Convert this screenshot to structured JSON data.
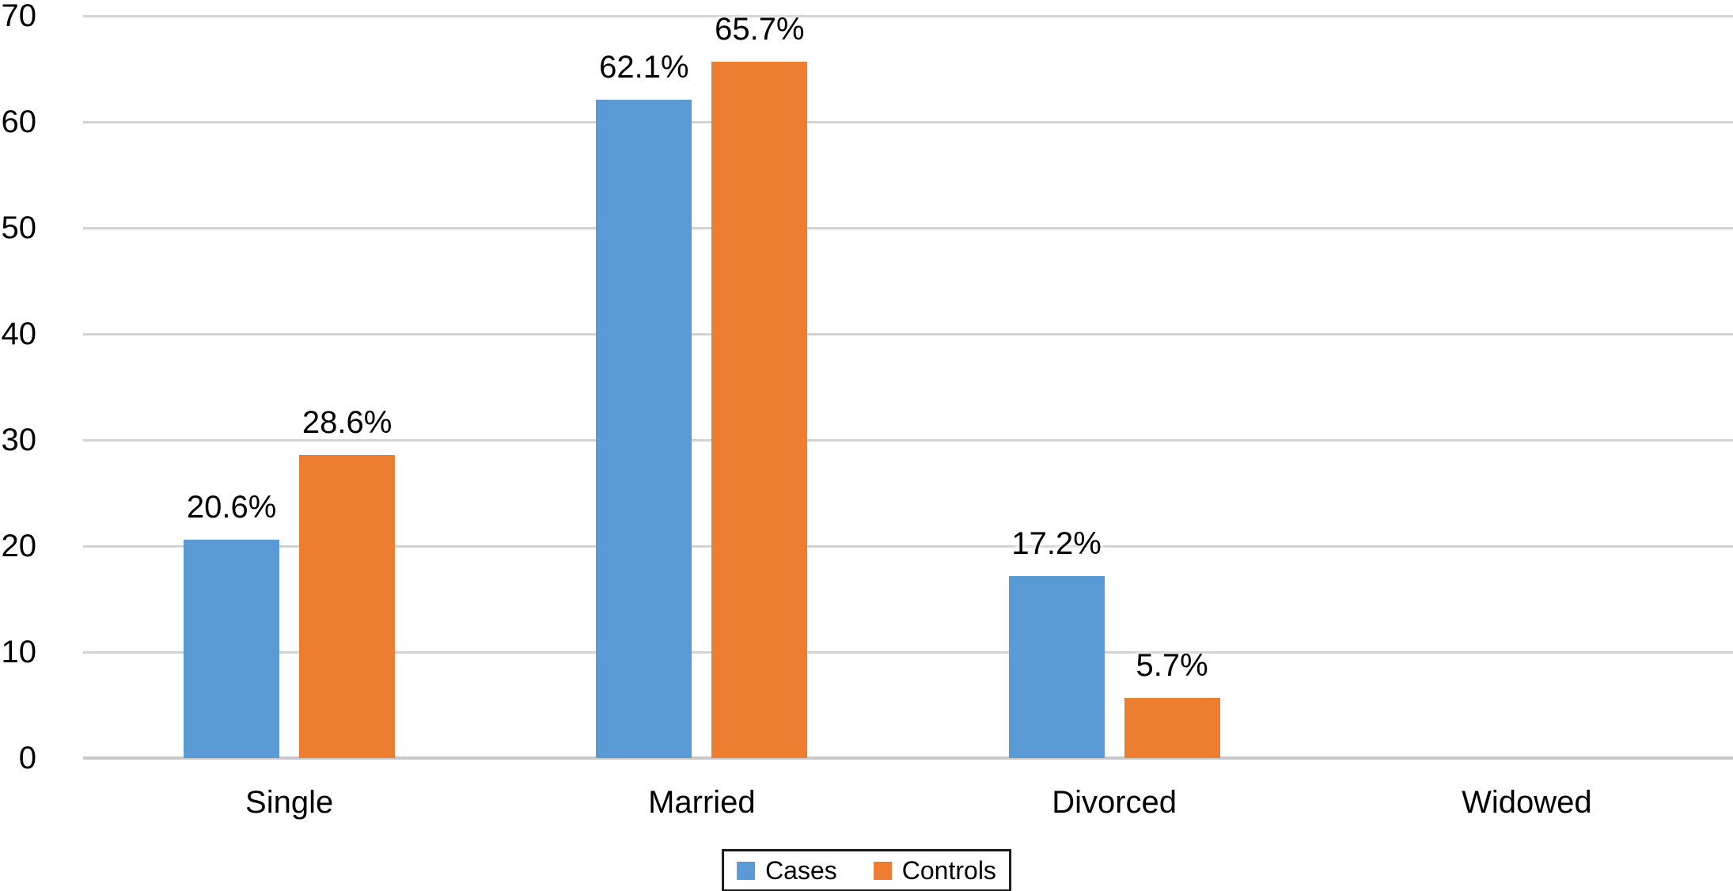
{
  "chart_data": {
    "type": "bar",
    "title": "",
    "xlabel": "",
    "ylabel": "",
    "categories": [
      "Single",
      "Married",
      "Divorced",
      "Widowed"
    ],
    "series": [
      {
        "name": "Cases",
        "color": "#5B9BD5",
        "values": [
          20.6,
          62.1,
          17.2,
          0
        ],
        "data_labels": [
          "20.6%",
          "62.1%",
          "17.2%",
          ""
        ]
      },
      {
        "name": "Controls",
        "color": "#ED7D31",
        "values": [
          28.6,
          65.7,
          5.7,
          0
        ],
        "data_labels": [
          "28.6%",
          "65.7%",
          "5.7%",
          ""
        ]
      }
    ],
    "ylim": [
      0,
      70
    ],
    "yticks": [
      0,
      10,
      20,
      30,
      40,
      50,
      60,
      70
    ],
    "grid": true,
    "legend": {
      "position": "bottom-center",
      "entries": [
        "Cases",
        "Controls"
      ]
    },
    "colors": {
      "cases": "#5B9BD5",
      "controls": "#ED7D31",
      "gridline": "#D3D3D3",
      "axis_line": "#C9C9C9",
      "text": "#000000",
      "background": "#FFFFFF",
      "legend_border": "#1A1A1A"
    }
  }
}
